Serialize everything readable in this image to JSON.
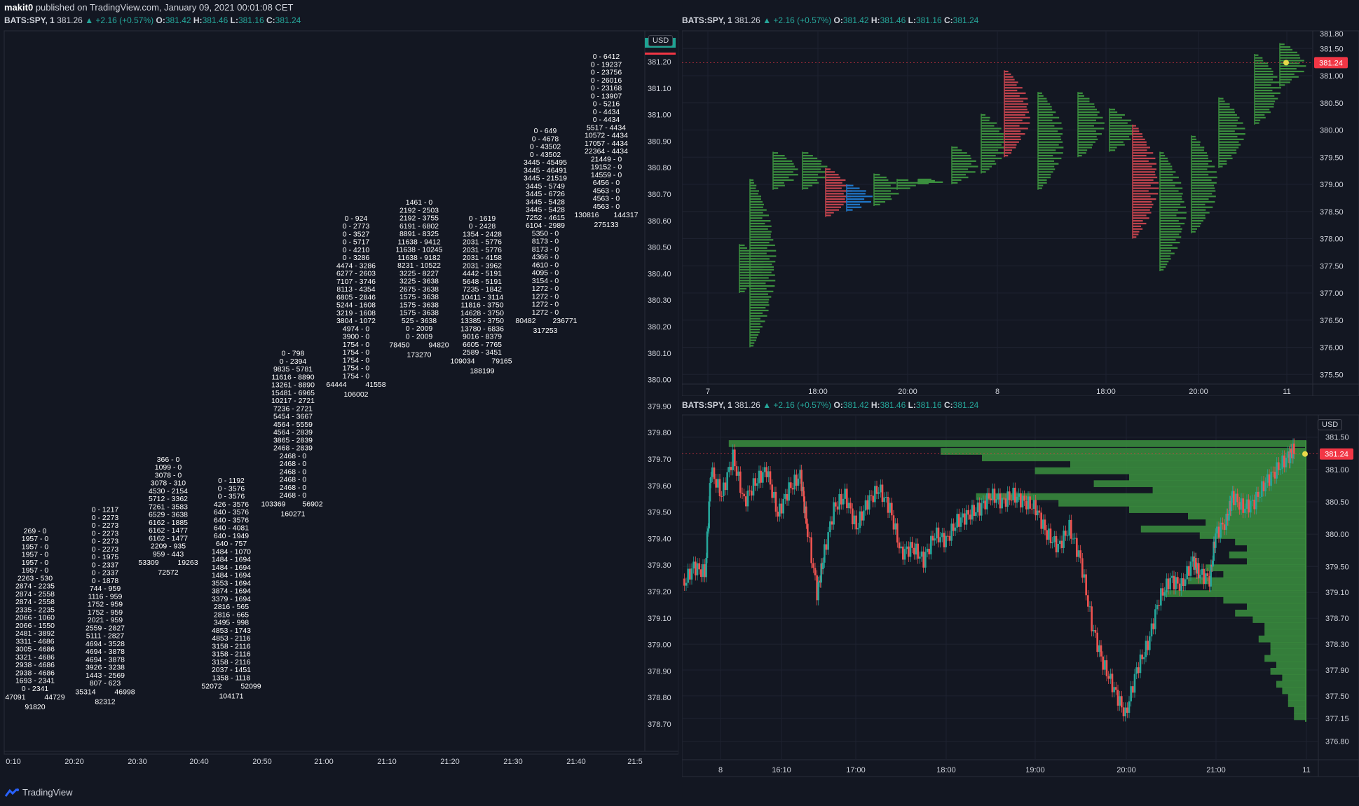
{
  "header": {
    "author": "makit0",
    "published_text": " published on TradingView.com, January 09, 2021 00:01:08 CET"
  },
  "legend": {
    "symbol": "BATS:SPY, 1",
    "last": "381.26",
    "change": "+2.16 (+0.57%)",
    "o_label": "O:",
    "o": "381.42",
    "h_label": "H:",
    "h": "381.46",
    "l_label": "L:",
    "l": "381.16",
    "c_label": "C:",
    "c": "381.24",
    "arrow": "▲"
  },
  "brand": {
    "name": "TradingView"
  },
  "colors": {
    "bg": "#131722",
    "grid": "#1e2230",
    "text": "#d1d4dc",
    "green": "#26a69a",
    "red": "#ef5350",
    "vp_green": "#3b8f3e",
    "vp_red": "#c2434d",
    "vp_blue": "#1f77c9",
    "price_tag": "#f23645",
    "yellow": "#e8d94a"
  },
  "chart_data": [
    {
      "id": "footprint",
      "type": "table",
      "currency": "USD",
      "y_ticks": [
        "381.20",
        "381.10",
        "381.00",
        "380.90",
        "380.80",
        "380.70",
        "380.60",
        "380.50",
        "380.40",
        "380.30",
        "380.20",
        "380.10",
        "380.00",
        "379.90",
        "379.80",
        "379.70",
        "379.60",
        "379.50",
        "379.40",
        "379.30",
        "379.20",
        "379.10",
        "379.00",
        "378.90",
        "378.80",
        "378.70"
      ],
      "x_ticks": [
        "0:10",
        "20:20",
        "20:30",
        "20:40",
        "20:50",
        "21:00",
        "21:10",
        "21:20",
        "21:30",
        "21:40",
        "21:5"
      ],
      "columns": [
        {
          "x": 50,
          "top": 379.42,
          "rows": [
            "269 - 0",
            "1957 - 0",
            "1957 - 0",
            "1957 - 0",
            "1957 - 0",
            "1957 - 0",
            "2263 - 530",
            "2874 - 2235",
            "2874 - 2558",
            "2874 - 2558",
            "2335 - 2235",
            "2066 - 1060",
            "2066 - 1550",
            "2481 - 3892",
            "3311 - 4686",
            "3005 - 4686",
            "3321 - 4686",
            "2938 - 4686",
            "2938 - 4686",
            "1693 - 2341",
            "0 - 2341"
          ],
          "left": "47091",
          "right": "44729",
          "total": "91820"
        },
        {
          "x": 150,
          "top": 379.5,
          "rows": [
            "0 - 1217",
            "0 - 2273",
            "0 - 2273",
            "0 - 2273",
            "0 - 2273",
            "0 - 2273",
            "0 - 1975",
            "0 - 2337",
            "0 - 2337",
            "0 - 1878",
            "744 - 959",
            "1116 - 959",
            "1752 - 959",
            "1752 - 959",
            "2021 - 959",
            "2559 - 2827",
            "5111 - 2827",
            "4694 - 3528",
            "4694 - 3878",
            "4694 - 3878",
            "3926 - 3238",
            "1443 - 2569",
            "807 - 623"
          ],
          "left": "35314",
          "right": "46998",
          "total": "82312"
        },
        {
          "x": 240,
          "top": 379.69,
          "rows": [
            "366 - 0",
            "1099 - 0",
            "3078 - 0",
            "3078 - 310",
            "4530 - 2154",
            "5712 - 3362",
            "7261 - 3583",
            "6529 - 3638",
            "6162 - 1885",
            "6162 - 1477",
            "6162 - 1477",
            "2209 - 935",
            "959 - 443"
          ],
          "left": "53309",
          "right": "19263",
          "total": "72572"
        },
        {
          "x": 330,
          "top": 379.61,
          "rows": [
            "0 - 1192",
            "0 - 3576",
            "0 - 3576",
            "426 - 3576",
            "640 - 3576",
            "640 - 3576",
            "640 - 4081",
            "640 - 1949",
            "640 - 757",
            "1484 - 1070",
            "1484 - 1694",
            "1484 - 1694",
            "1484 - 1694",
            "3553 - 1694",
            "3874 - 1694",
            "3379 - 1694",
            "2816 - 565",
            "2816 - 665",
            "3495 - 998",
            "4853 - 1743",
            "4853 - 2116",
            "3158 - 2116",
            "3158 - 2116",
            "3158 - 2116",
            "2037 - 1451",
            "1358 - 1118"
          ],
          "left": "52072",
          "right": "52099",
          "total": "104171"
        },
        {
          "x": 418,
          "top": 380.09,
          "rows": [
            "0 - 798",
            "0 - 2394",
            "9835 - 5781",
            "11616 - 8890",
            "13261 - 8890",
            "15481 - 6965",
            "10217 - 2721",
            "7236 - 2721",
            "5454 - 3667",
            "4564 - 5559",
            "4564 - 2839",
            "3865 - 2839",
            "2468 - 2839",
            "2468 - 0",
            "2468 - 0",
            "2468 - 0",
            "2468 - 0",
            "2468 - 0",
            "2468 - 0"
          ],
          "left": "103369",
          "right": "56902",
          "total": "160271"
        },
        {
          "x": 508,
          "top": 380.6,
          "rows": [
            "0 - 924",
            "0 - 2773",
            "0 - 3527",
            "0 - 5717",
            "0 - 4210",
            "0 - 3286",
            "4474 - 3286",
            "6277 - 2603",
            "7107 - 3746",
            "8113 - 4354",
            "6805 - 2846",
            "5244 - 1608",
            "3219 - 1608",
            "3804 - 1072",
            "4974 - 0",
            "3900 - 0",
            "1754 - 0",
            "1754 - 0",
            "1754 - 0",
            "1754 - 0",
            "1754 - 0"
          ],
          "left": "64444",
          "right": "41558",
          "total": "106002"
        },
        {
          "x": 598,
          "top": 380.66,
          "rows": [
            "1461 - 0",
            "2192 - 2503",
            "2192 - 3755",
            "6191 - 6802",
            "8891 - 8325",
            "11638 - 9412",
            "11638 - 10245",
            "11638 - 9182",
            "8231 - 10522",
            "3225 - 8227",
            "3225 - 3638",
            "2675 - 3638",
            "1575 - 3638",
            "1575 - 3638",
            "1575 - 3638",
            "525 - 3638",
            "0 - 2009",
            "0 - 2009"
          ],
          "left": "78450",
          "right": "94820",
          "total": "173270"
        },
        {
          "x": 688,
          "top": 380.6,
          "rows": [
            "0 - 1619",
            "0 - 2428",
            "1354 - 2428",
            "2031 - 5776",
            "2031 - 5776",
            "2031 - 4158",
            "2031 - 3962",
            "4442 - 5191",
            "5648 - 5191",
            "7235 - 1842",
            "10411 - 3114",
            "11816 - 3750",
            "14628 - 3750",
            "13385 - 3750",
            "13780 - 6836",
            "9016 - 8379",
            "6605 - 7765",
            "2589 - 3451"
          ],
          "left": "109034",
          "right": "79165",
          "total": "188199"
        },
        {
          "x": 778,
          "top": 380.93,
          "rows": [
            "0 - 649",
            "0 - 4678",
            "0 - 43502",
            "0 - 43502",
            "3445 - 45495",
            "3445 - 46491",
            "3445 - 21519",
            "3445 - 5749",
            "3445 - 6726",
            "3445 - 5428",
            "3445 - 5428",
            "7252 - 4615",
            "6104 - 2989",
            "5350 - 0",
            "8173 - 0",
            "8173 - 0",
            "4366 - 0",
            "4610 - 0",
            "4095 - 0",
            "3154 - 0",
            "1272 - 0",
            "1272 - 0",
            "1272 - 0",
            "1272 - 0"
          ],
          "left": "80482",
          "right": "236771",
          "total": "317253"
        },
        {
          "x": 865,
          "top": 381.21,
          "rows": [
            "0 - 6412",
            "0 - 19237",
            "0 - 23756",
            "0 - 26016",
            "0 - 23168",
            "0 - 13907",
            "0 - 5216",
            "0 - 4434",
            "0 - 4434",
            "5517 - 4434",
            "10572 - 4434",
            "17057 - 4434",
            "22364 - 4434",
            "21449 - 0",
            "19152 - 0",
            "14559 - 0",
            "6456 - 0",
            "4563 - 0",
            "4563 - 0",
            "4563 - 0"
          ],
          "left": "130816",
          "right": "144317",
          "total": "275133"
        }
      ]
    },
    {
      "id": "session-volume-profile",
      "type": "bar",
      "ylim": [
        375.4,
        381.8
      ],
      "y_ticks": [
        "381.50",
        "381.00",
        "380.50",
        "380.00",
        "379.50",
        "379.00",
        "378.50",
        "378.00",
        "377.50",
        "377.00",
        "376.50",
        "376.00",
        "375.50"
      ],
      "top_tick_partial": "381.80",
      "x_ticks": [
        "7",
        "18:00",
        "20:00",
        "8",
        "18:00",
        "20:00",
        "11"
      ],
      "last_price": "381.24",
      "last_value": 381.24,
      "profiles": [
        {
          "t": 0.15,
          "lo": 377.0,
          "hi": 377.9,
          "color": "green"
        },
        {
          "t": 0.2,
          "lo": 376.0,
          "hi": 379.1,
          "color": "green"
        },
        {
          "t": 0.31,
          "lo": 378.9,
          "hi": 379.6,
          "color": "green"
        },
        {
          "t": 0.45,
          "lo": 378.9,
          "hi": 379.6,
          "color": "green"
        },
        {
          "t": 0.56,
          "lo": 378.4,
          "hi": 379.3,
          "color": "red"
        },
        {
          "t": 0.66,
          "lo": 378.5,
          "hi": 379.0,
          "color": "blue"
        },
        {
          "t": 0.79,
          "lo": 378.6,
          "hi": 379.2,
          "color": "green"
        },
        {
          "t": 0.9,
          "lo": 378.9,
          "hi": 379.1,
          "color": "green"
        },
        {
          "t": 1.0,
          "lo": 379.0,
          "hi": 379.1,
          "color": "green"
        },
        {
          "t": 1.16,
          "lo": 379.0,
          "hi": 379.7,
          "color": "green"
        },
        {
          "t": 1.3,
          "lo": 379.2,
          "hi": 380.3,
          "color": "green"
        },
        {
          "t": 1.41,
          "lo": 379.5,
          "hi": 381.1,
          "color": "red"
        },
        {
          "t": 1.57,
          "lo": 378.9,
          "hi": 380.7,
          "color": "green"
        },
        {
          "t": 1.76,
          "lo": 379.5,
          "hi": 380.7,
          "color": "green"
        },
        {
          "t": 1.91,
          "lo": 379.6,
          "hi": 380.4,
          "color": "green"
        },
        {
          "t": 2.02,
          "lo": 378.0,
          "hi": 380.1,
          "color": "red"
        },
        {
          "t": 2.15,
          "lo": 377.4,
          "hi": 379.6,
          "color": "green"
        },
        {
          "t": 2.3,
          "lo": 378.1,
          "hi": 379.9,
          "color": "green"
        },
        {
          "t": 2.43,
          "lo": 379.3,
          "hi": 380.6,
          "color": "green"
        },
        {
          "t": 2.6,
          "lo": 380.1,
          "hi": 381.4,
          "color": "green"
        },
        {
          "t": 2.72,
          "lo": 380.8,
          "hi": 381.6,
          "color": "green"
        }
      ]
    },
    {
      "id": "visible-range-profile",
      "type": "line",
      "currency": "USD",
      "ylim": [
        376.6,
        381.8
      ],
      "y_ticks": [
        "381.50",
        "381.00",
        "380.50",
        "380.00",
        "379.50",
        "379.10",
        "378.70",
        "378.30",
        "377.90",
        "377.50",
        "377.15",
        "376.80"
      ],
      "x_ticks": [
        "8",
        "16:10",
        "17:00",
        "18:00",
        "19:00",
        "20:00",
        "21:00",
        "11"
      ],
      "last_price": "381.24",
      "last_value": 381.24,
      "price_path": [
        [
          0,
          379.2
        ],
        [
          0.02,
          379.5
        ],
        [
          0.04,
          379.4
        ],
        [
          0.05,
          381.0
        ],
        [
          0.07,
          380.6
        ],
        [
          0.09,
          381.2
        ],
        [
          0.11,
          380.5
        ],
        [
          0.13,
          380.8
        ],
        [
          0.15,
          381.0
        ],
        [
          0.17,
          380.3
        ],
        [
          0.19,
          380.7
        ],
        [
          0.21,
          380.9
        ],
        [
          0.22,
          380.2
        ],
        [
          0.24,
          379.1
        ],
        [
          0.25,
          379.6
        ],
        [
          0.27,
          380.4
        ],
        [
          0.29,
          380.6
        ],
        [
          0.31,
          380.1
        ],
        [
          0.33,
          380.5
        ],
        [
          0.35,
          380.7
        ],
        [
          0.37,
          380.4
        ],
        [
          0.39,
          379.7
        ],
        [
          0.41,
          379.8
        ],
        [
          0.43,
          379.6
        ],
        [
          0.45,
          380.0
        ],
        [
          0.47,
          379.9
        ],
        [
          0.49,
          380.2
        ],
        [
          0.51,
          380.3
        ],
        [
          0.53,
          380.4
        ],
        [
          0.55,
          380.6
        ],
        [
          0.57,
          380.5
        ],
        [
          0.59,
          380.6
        ],
        [
          0.61,
          380.5
        ],
        [
          0.63,
          380.4
        ],
        [
          0.65,
          380.0
        ],
        [
          0.67,
          379.8
        ],
        [
          0.69,
          380.1
        ],
        [
          0.71,
          379.6
        ],
        [
          0.73,
          378.6
        ],
        [
          0.75,
          378.0
        ],
        [
          0.77,
          377.6
        ],
        [
          0.79,
          377.2
        ],
        [
          0.81,
          377.9
        ],
        [
          0.83,
          378.3
        ],
        [
          0.85,
          379.0
        ],
        [
          0.87,
          379.3
        ],
        [
          0.89,
          379.2
        ],
        [
          0.91,
          379.6
        ],
        [
          0.92,
          379.4
        ],
        [
          0.94,
          379.3
        ],
        [
          0.95,
          380.0
        ],
        [
          0.97,
          380.2
        ],
        [
          0.98,
          380.6
        ],
        [
          1.0,
          380.4
        ],
        [
          1.02,
          380.5
        ],
        [
          1.04,
          380.8
        ],
        [
          1.06,
          381.0
        ],
        [
          1.08,
          381.2
        ],
        [
          1.09,
          381.3
        ]
      ],
      "profile": [
        [
          381.4,
          0.98
        ],
        [
          381.28,
          0.62
        ],
        [
          381.18,
          0.55
        ],
        [
          381.08,
          0.4
        ],
        [
          380.98,
          0.46
        ],
        [
          380.88,
          0.3
        ],
        [
          380.78,
          0.36
        ],
        [
          380.68,
          0.26
        ],
        [
          380.58,
          0.56
        ],
        [
          380.48,
          0.42
        ],
        [
          380.38,
          0.3
        ],
        [
          380.28,
          0.2
        ],
        [
          380.18,
          0.17
        ],
        [
          380.08,
          0.28
        ],
        [
          379.98,
          0.18
        ],
        [
          379.88,
          0.12
        ],
        [
          379.78,
          0.1
        ],
        [
          379.68,
          0.13
        ],
        [
          379.58,
          0.1
        ],
        [
          379.48,
          0.17
        ],
        [
          379.38,
          0.14
        ],
        [
          379.28,
          0.2
        ],
        [
          379.18,
          0.16
        ],
        [
          379.08,
          0.24
        ],
        [
          378.98,
          0.14
        ],
        [
          378.88,
          0.1
        ],
        [
          378.78,
          0.12
        ],
        [
          378.68,
          0.09
        ],
        [
          378.58,
          0.07
        ],
        [
          378.48,
          0.07
        ],
        [
          378.38,
          0.08
        ],
        [
          378.28,
          0.06
        ],
        [
          378.18,
          0.06
        ],
        [
          378.08,
          0.07
        ],
        [
          377.98,
          0.05
        ],
        [
          377.88,
          0.06
        ],
        [
          377.78,
          0.04
        ],
        [
          377.68,
          0.05
        ],
        [
          377.58,
          0.04
        ],
        [
          377.48,
          0.03
        ],
        [
          377.38,
          0.03
        ],
        [
          377.28,
          0.02
        ],
        [
          377.18,
          0.02
        ]
      ]
    }
  ]
}
